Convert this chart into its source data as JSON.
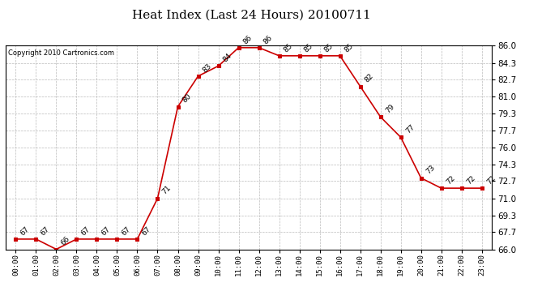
{
  "title": "Heat Index (Last 24 Hours) 20100711",
  "copyright": "Copyright 2010 Cartronics.com",
  "x_labels": [
    "00:00",
    "01:00",
    "02:00",
    "03:00",
    "04:00",
    "05:00",
    "06:00",
    "07:00",
    "08:00",
    "09:00",
    "10:00",
    "11:00",
    "12:00",
    "13:00",
    "14:00",
    "15:00",
    "16:00",
    "17:00",
    "18:00",
    "19:00",
    "20:00",
    "21:00",
    "22:00",
    "23:00"
  ],
  "y_values": [
    67,
    67,
    66,
    67,
    67,
    67,
    67,
    71,
    80,
    83,
    84,
    85.8,
    85.8,
    85,
    85,
    85,
    85,
    82,
    79,
    77,
    73,
    72,
    72,
    72
  ],
  "ylim": [
    66.0,
    86.0
  ],
  "yticks": [
    66.0,
    67.7,
    69.3,
    71.0,
    72.7,
    74.3,
    76.0,
    77.7,
    79.3,
    81.0,
    82.7,
    84.3,
    86.0
  ],
  "line_color": "#cc0000",
  "marker": "s",
  "marker_color": "#cc0000",
  "bg_color": "#ffffff",
  "grid_color": "#bbbbbb",
  "title_fontsize": 11,
  "annotation_fontsize": 6.5,
  "annotations": [
    "67",
    "67",
    "66",
    "67",
    "67",
    "67",
    "67",
    "71",
    "80",
    "83",
    "84",
    "86",
    "86",
    "85",
    "85",
    "85",
    "85",
    "82",
    "79",
    "77",
    "73",
    "72",
    "72",
    "72"
  ]
}
